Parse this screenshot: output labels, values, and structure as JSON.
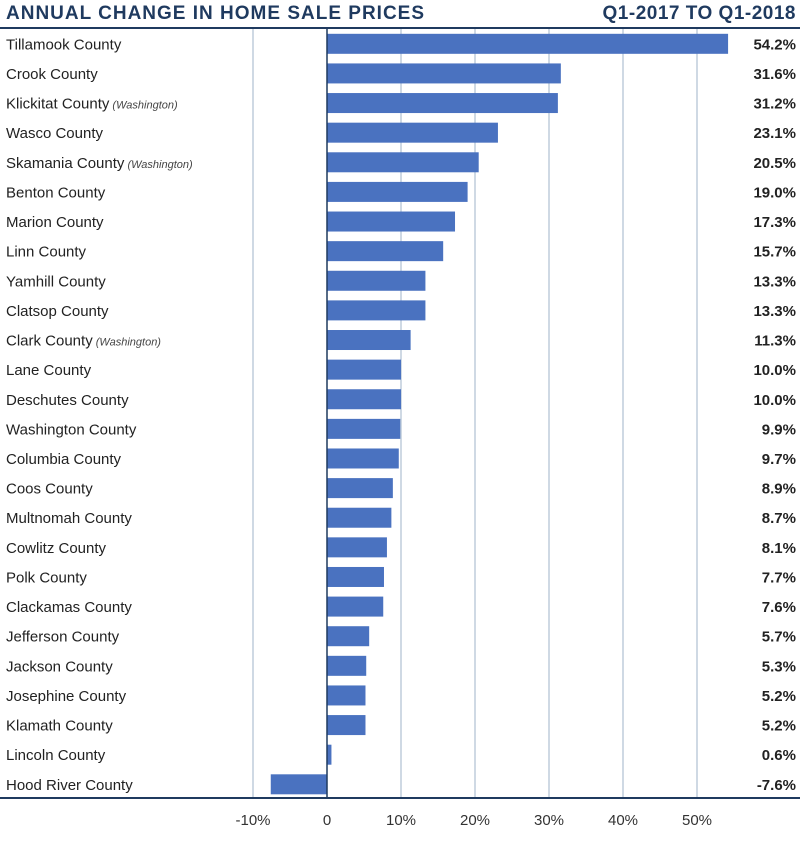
{
  "header": {
    "title": "ANNUAL CHANGE IN HOME SALE PRICES",
    "period": "Q1-2017 TO Q1-2018"
  },
  "colors": {
    "bar": "#4a72c0",
    "title": "#1f3a5f",
    "grid": "#9fb3c8",
    "axis": "#1f3a5f"
  },
  "chart_data": {
    "type": "bar",
    "orientation": "horizontal",
    "title": "ANNUAL CHANGE IN HOME SALE PRICES",
    "subtitle": "Q1-2017 TO Q1-2018",
    "xlabel": "",
    "ylabel": "",
    "xlim": [
      -10,
      55
    ],
    "xticks": [
      -10,
      0,
      10,
      20,
      30,
      40,
      50
    ],
    "xtick_labels": [
      "-10%",
      "0",
      "10%",
      "20%",
      "30%",
      "40%",
      "50%"
    ],
    "grid": true,
    "categories": [
      {
        "name": "Tillamook County",
        "note": "",
        "value": 54.2,
        "label": "54.2%"
      },
      {
        "name": "Crook County",
        "note": "",
        "value": 31.6,
        "label": "31.6%"
      },
      {
        "name": "Klickitat County",
        "note": "(Washington)",
        "value": 31.2,
        "label": "31.2%"
      },
      {
        "name": "Wasco County",
        "note": "",
        "value": 23.1,
        "label": "23.1%"
      },
      {
        "name": "Skamania County",
        "note": "(Washington)",
        "value": 20.5,
        "label": "20.5%"
      },
      {
        "name": "Benton County",
        "note": "",
        "value": 19.0,
        "label": "19.0%"
      },
      {
        "name": "Marion County",
        "note": "",
        "value": 17.3,
        "label": "17.3%"
      },
      {
        "name": "Linn County",
        "note": "",
        "value": 15.7,
        "label": "15.7%"
      },
      {
        "name": "Yamhill County",
        "note": "",
        "value": 13.3,
        "label": "13.3%"
      },
      {
        "name": "Clatsop County",
        "note": "",
        "value": 13.3,
        "label": "13.3%"
      },
      {
        "name": "Clark County",
        "note": "(Washington)",
        "value": 11.3,
        "label": "11.3%"
      },
      {
        "name": "Lane County",
        "note": "",
        "value": 10.0,
        "label": "10.0%"
      },
      {
        "name": "Deschutes County",
        "note": "",
        "value": 10.0,
        "label": "10.0%"
      },
      {
        "name": "Washington County",
        "note": "",
        "value": 9.9,
        "label": "9.9%"
      },
      {
        "name": "Columbia County",
        "note": "",
        "value": 9.7,
        "label": "9.7%"
      },
      {
        "name": "Coos County",
        "note": "",
        "value": 8.9,
        "label": "8.9%"
      },
      {
        "name": "Multnomah County",
        "note": "",
        "value": 8.7,
        "label": "8.7%"
      },
      {
        "name": "Cowlitz County",
        "note": "",
        "value": 8.1,
        "label": "8.1%"
      },
      {
        "name": "Polk County",
        "note": "",
        "value": 7.7,
        "label": "7.7%"
      },
      {
        "name": "Clackamas County",
        "note": "",
        "value": 7.6,
        "label": "7.6%"
      },
      {
        "name": "Jefferson County",
        "note": "",
        "value": 5.7,
        "label": "5.7%"
      },
      {
        "name": "Jackson County",
        "note": "",
        "value": 5.3,
        "label": "5.3%"
      },
      {
        "name": "Josephine County",
        "note": "",
        "value": 5.2,
        "label": "5.2%"
      },
      {
        "name": "Klamath County",
        "note": "",
        "value": 5.2,
        "label": "5.2%"
      },
      {
        "name": "Lincoln County",
        "note": "",
        "value": 0.6,
        "label": "0.6%"
      },
      {
        "name": "Hood River County",
        "note": "",
        "value": -7.6,
        "label": "-7.6%"
      }
    ]
  }
}
